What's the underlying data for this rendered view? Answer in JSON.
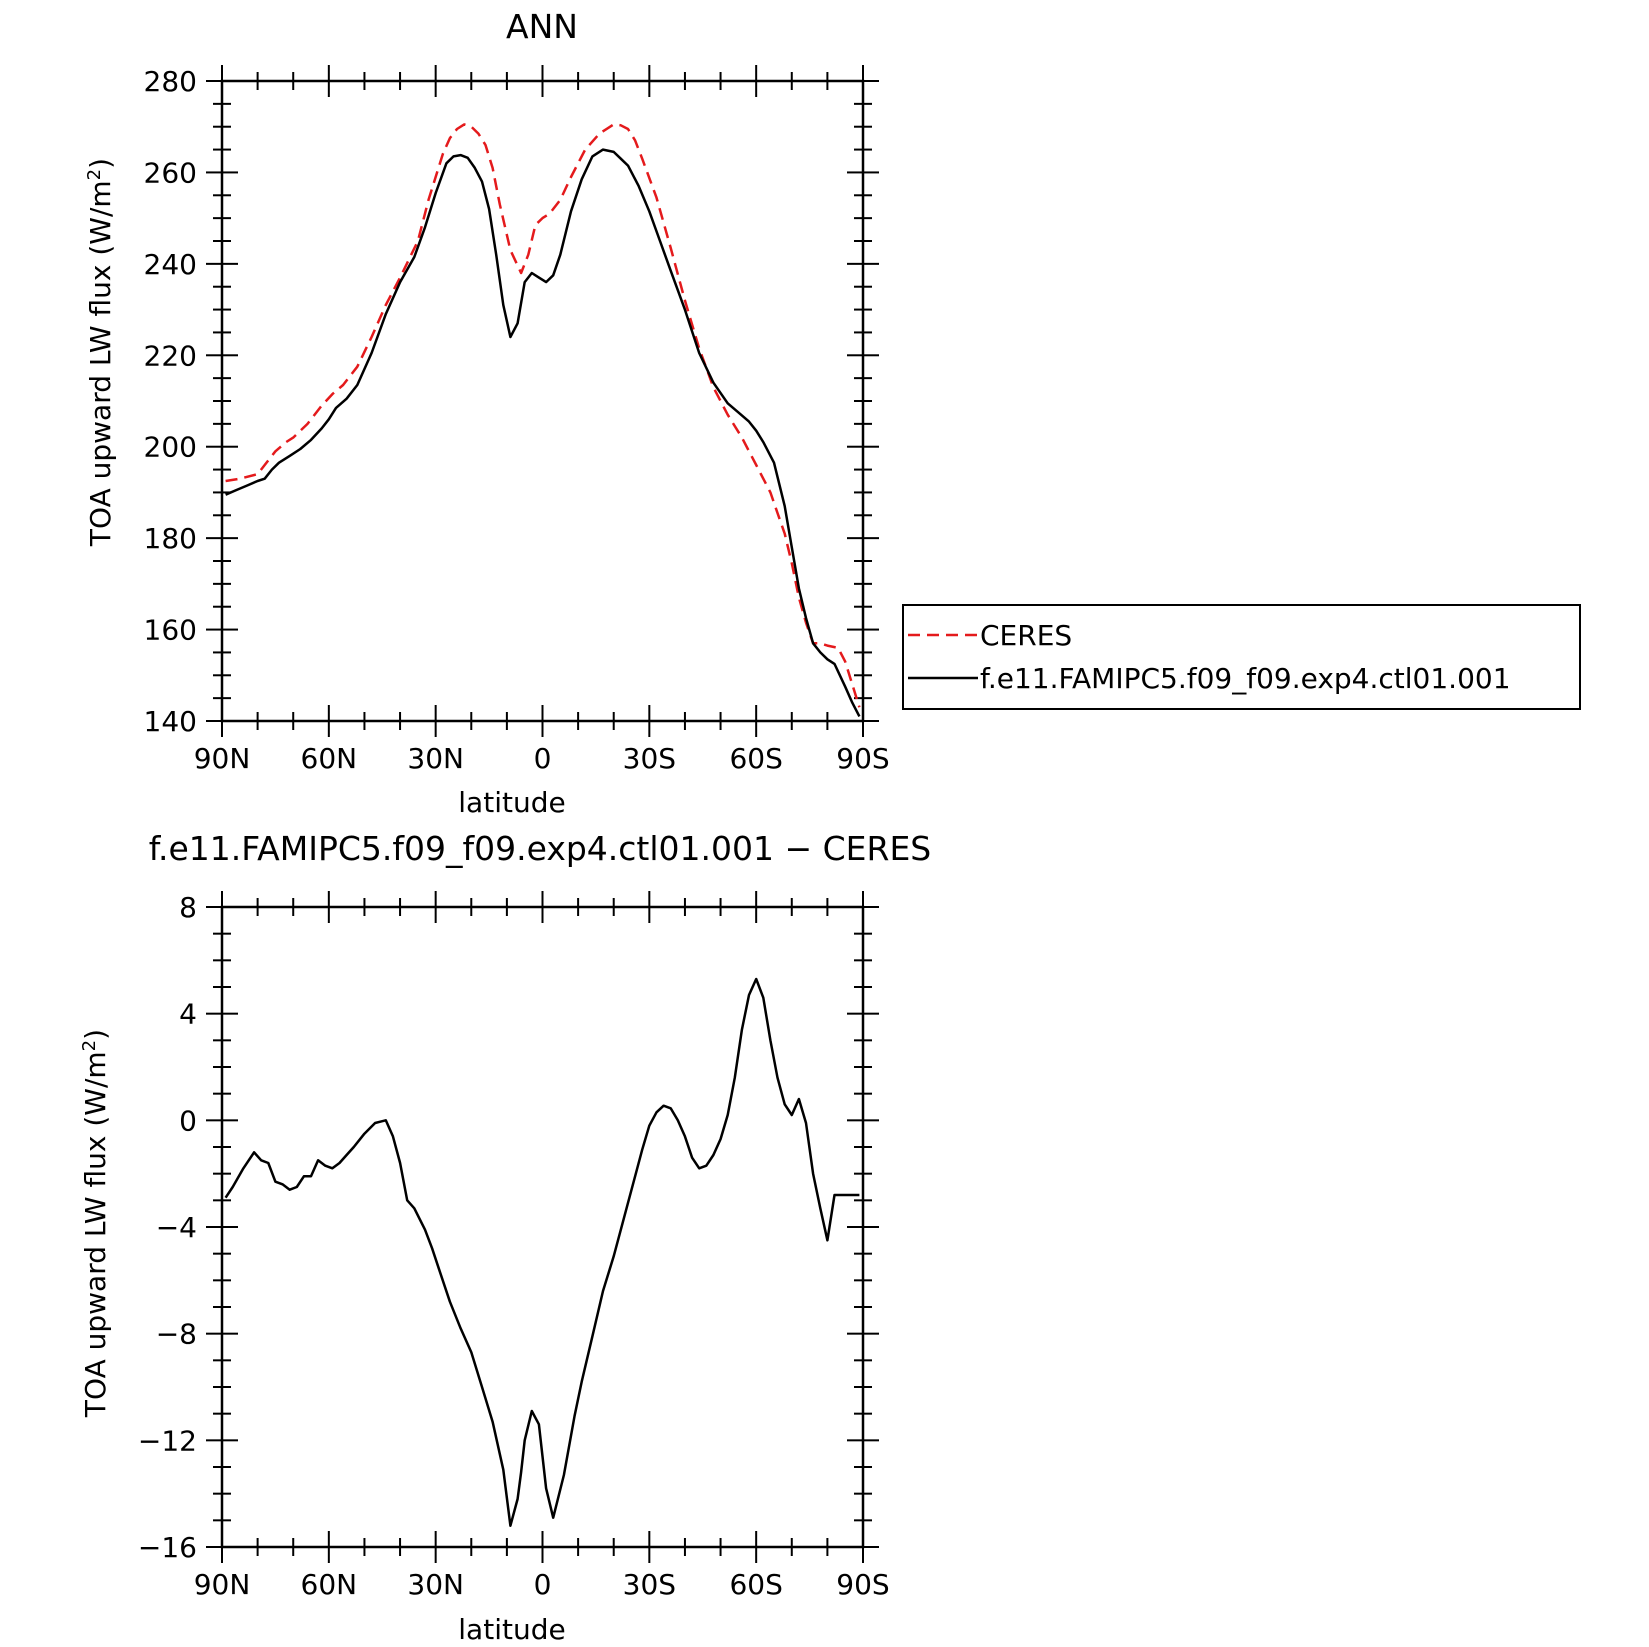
{
  "chart_data": [
    {
      "type": "line",
      "title": "ANN",
      "xlabel": "latitude",
      "ylabel": "TOA upward LW flux (W/m²)",
      "ylabel_parts": [
        "TOA upward LW flux (W/m",
        "2",
        ")"
      ],
      "xlim": [
        90,
        -90
      ],
      "ylim": [
        140,
        280
      ],
      "xticks": [
        90,
        60,
        30,
        0,
        -30,
        -60,
        -90
      ],
      "xtick_labels": [
        "90N",
        "60N",
        "30N",
        "0",
        "30S",
        "60S",
        "90S"
      ],
      "yticks": [
        140,
        160,
        180,
        200,
        220,
        240,
        260,
        280
      ],
      "ytick_labels": [
        "140",
        "160",
        "180",
        "200",
        "220",
        "240",
        "260",
        "280"
      ],
      "legend": {
        "placement": "right",
        "entries": [
          "CERES",
          "f.e11.FAMIPC5.f09_f09.exp4.ctl01.001"
        ]
      },
      "series": [
        {
          "name": "CERES",
          "color": "#e41a1c",
          "dash": "dashed",
          "x": [
            89,
            85,
            80,
            78,
            75,
            72,
            70,
            66,
            62,
            59,
            56,
            52,
            48,
            44,
            40,
            35,
            32,
            28,
            26,
            24,
            22,
            20,
            18,
            16,
            14,
            12,
            9,
            6,
            4,
            2,
            0,
            -2,
            -5,
            -8,
            -12,
            -16,
            -20,
            -22,
            -24,
            -26,
            -28,
            -32,
            -36,
            -40,
            -44,
            -48,
            -52,
            -56,
            -60,
            -64,
            -66,
            -68,
            -70,
            -72,
            -74,
            -76,
            -78,
            -80,
            -83,
            -85,
            -87,
            -89
          ],
          "y": [
            192.5,
            193,
            194,
            196,
            199,
            201,
            202,
            205,
            209,
            211.5,
            213.5,
            217.5,
            224,
            231,
            237,
            245,
            254,
            264,
            267.5,
            269.5,
            270.5,
            270,
            268.5,
            266,
            261,
            253,
            243,
            238,
            242,
            248.5,
            250,
            251,
            254,
            259,
            265,
            268.5,
            270.5,
            270.3,
            269.5,
            267,
            263,
            254.5,
            243.5,
            232,
            221.5,
            213,
            207,
            202,
            196,
            190,
            185.5,
            181,
            174.5,
            167,
            161.5,
            157,
            157,
            156.5,
            156,
            153,
            148,
            143
          ]
        },
        {
          "name": "f.e11.FAMIPC5.f09_f09.exp4.ctl01.001",
          "color": "#000000",
          "dash": "solid",
          "x": [
            89,
            86,
            83,
            80,
            78,
            76,
            74,
            71,
            68,
            65,
            62,
            60,
            58,
            55,
            52,
            48,
            44,
            40,
            36,
            33,
            30,
            27,
            25,
            23,
            21,
            19,
            17,
            15,
            13,
            11,
            9,
            7,
            5,
            3,
            1,
            -1,
            -3,
            -5,
            -8,
            -11,
            -14,
            -17,
            -20,
            -22,
            -24,
            -27,
            -30,
            -33,
            -36,
            -40,
            -44,
            -48,
            -52,
            -55,
            -58,
            -60,
            -62,
            -65,
            -68,
            -70,
            -72,
            -74,
            -76,
            -78,
            -80,
            -82,
            -85,
            -87,
            -89
          ],
          "y": [
            189.5,
            190.5,
            191.5,
            192.5,
            193,
            195,
            196.5,
            198,
            199.5,
            201.5,
            204,
            206,
            208.5,
            210.5,
            213.5,
            220.5,
            229,
            236,
            241.5,
            248,
            255.5,
            262,
            263.5,
            263.8,
            263.2,
            261,
            258,
            252,
            242,
            231,
            224,
            227,
            236,
            238,
            237,
            236,
            237.5,
            242,
            251.5,
            258.5,
            263.5,
            265,
            264.5,
            263,
            261.5,
            257,
            251.5,
            245,
            238.5,
            230,
            220.5,
            214,
            209.5,
            207.5,
            205.5,
            203.5,
            201,
            196.5,
            187,
            178,
            169,
            162.5,
            157,
            155,
            153.5,
            152.5,
            147.5,
            144,
            141
          ]
        }
      ]
    },
    {
      "type": "line",
      "title": "f.e11.FAMIPC5.f09_f09.exp4.ctl01.001 − CERES",
      "xlabel": "latitude",
      "ylabel": "TOA upward LW flux (W/m²)",
      "ylabel_parts": [
        "TOA upward LW flux (W/m",
        "2",
        ")"
      ],
      "xlim": [
        90,
        -90
      ],
      "ylim": [
        -16,
        8
      ],
      "xticks": [
        90,
        60,
        30,
        0,
        -30,
        -60,
        -90
      ],
      "xtick_labels": [
        "90N",
        "60N",
        "30N",
        "0",
        "30S",
        "60S",
        "90S"
      ],
      "yticks": [
        -16,
        -12,
        -8,
        -4,
        0,
        4,
        8
      ],
      "ytick_labels": [
        "−16",
        "−12",
        "−8",
        "−4",
        "0",
        "4",
        "8"
      ],
      "series": [
        {
          "color": "#000000",
          "dash": "solid",
          "x": [
            89,
            87,
            84,
            81,
            79,
            77,
            75,
            73,
            71,
            69,
            67,
            65,
            63,
            61,
            59,
            57,
            55,
            53,
            50,
            47,
            44,
            42,
            40,
            38,
            36,
            33,
            31,
            29,
            26,
            23,
            20,
            17,
            14,
            11,
            9,
            7,
            6,
            5,
            3,
            1,
            -1,
            -3,
            -6,
            -9,
            -11,
            -14,
            -17,
            -20,
            -23,
            -26,
            -28,
            -30,
            -32,
            -34,
            -36,
            -38,
            -40,
            -42,
            -44,
            -46,
            -48,
            -50,
            -52,
            -54,
            -56,
            -58,
            -60,
            -62,
            -64,
            -66,
            -68,
            -70,
            -72,
            -74,
            -76,
            -78,
            -80,
            -82,
            -85,
            -87,
            -89
          ],
          "y": [
            -2.9,
            -2.5,
            -1.8,
            -1.2,
            -1.5,
            -1.6,
            -2.3,
            -2.4,
            -2.6,
            -2.5,
            -2.1,
            -2.1,
            -1.5,
            -1.7,
            -1.8,
            -1.6,
            -1.3,
            -1,
            -0.5,
            -0.1,
            0,
            -0.6,
            -1.6,
            -3.0,
            -3.3,
            -4.1,
            -4.8,
            -5.6,
            -6.8,
            -7.8,
            -8.7,
            -10,
            -11.3,
            -13.1,
            -15.2,
            -14.2,
            -13.2,
            -12.0,
            -10.9,
            -11.4,
            -13.8,
            -14.9,
            -13.3,
            -11.1,
            -9.8,
            -8.1,
            -6.4,
            -5.1,
            -3.6,
            -2.1,
            -1.1,
            -0.2,
            0.3,
            0.55,
            0.45,
            0,
            -0.6,
            -1.4,
            -1.8,
            -1.7,
            -1.3,
            -0.7,
            0.2,
            1.6,
            3.4,
            4.7,
            5.3,
            4.6,
            3.0,
            1.6,
            0.6,
            0.2,
            0.8,
            -0.1,
            -2.0,
            -3.3,
            -4.5,
            -2.8,
            -2.8,
            -2.8,
            -2.8
          ]
        }
      ]
    }
  ]
}
